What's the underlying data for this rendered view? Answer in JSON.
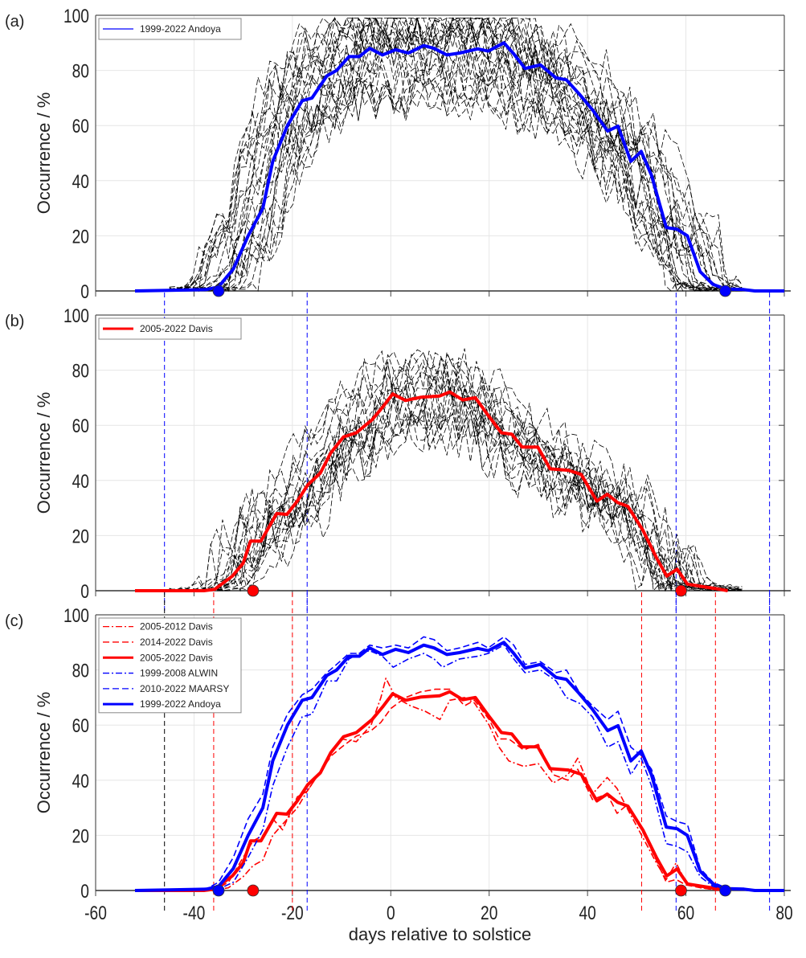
{
  "chart_data": {
    "type": "line",
    "xlabel": "days relative to solstice",
    "xlim": [
      -60,
      80
    ],
    "xticks": [
      "-60",
      "-40",
      "-20",
      "0",
      "20",
      "40",
      "60",
      "80"
    ],
    "yticks": [
      "0",
      "20",
      "40",
      "60",
      "80",
      "100"
    ],
    "grid": true,
    "panels": [
      {
        "label": "(a)",
        "ylabel": "Occurrence / %",
        "ylim": [
          0,
          100
        ],
        "individual_years_count": 24,
        "legend": {
          "placement": "top-left",
          "entries": [
            "1999-2022 Andoya"
          ]
        },
        "series": [
          {
            "name": "1999-2022 Andoya",
            "color": "#0000ff",
            "style": "solid-thick",
            "ref": "andoya"
          }
        ],
        "markers": [
          {
            "x": -35,
            "y": 0,
            "color": "#0000ff"
          },
          {
            "x": 68,
            "y": 0,
            "color": "#0000ff"
          }
        ],
        "vlines": []
      },
      {
        "label": "(b)",
        "ylabel": "Occurrence / %",
        "ylim": [
          0,
          100
        ],
        "individual_years_count": 18,
        "legend": {
          "placement": "top-left",
          "entries": [
            "2005-2022 Davis"
          ]
        },
        "series": [
          {
            "name": "2005-2022 Davis",
            "color": "#ff0000",
            "style": "solid-thick",
            "ref": "davis"
          }
        ],
        "markers": [
          {
            "x": -28,
            "y": 0,
            "color": "#ff0000"
          },
          {
            "x": 59,
            "y": 0,
            "color": "#ff0000"
          }
        ],
        "vlines": [
          {
            "x": -46,
            "color": "#0000ff"
          },
          {
            "x": -17,
            "color": "#0000ff"
          },
          {
            "x": 58,
            "color": "#0000ff"
          },
          {
            "x": 77,
            "color": "#0000ff"
          }
        ]
      },
      {
        "label": "(c)",
        "ylabel": "Occurrence / %",
        "ylim": [
          0,
          100
        ],
        "individual_years_count": 0,
        "legend": {
          "placement": "top-left",
          "entries": [
            "2005-2012 Davis",
            "2014-2022 Davis",
            "2005-2022 Davis",
            "1999-2008 ALWIN",
            "2010-2022 MAARSY",
            "1999-2022 Andoya"
          ]
        },
        "series": [
          {
            "name": "2005-2012 Davis",
            "color": "#ff0000",
            "style": "dashdot",
            "ref": "davis_0512"
          },
          {
            "name": "2014-2022 Davis",
            "color": "#ff0000",
            "style": "dashed",
            "ref": "davis_1422"
          },
          {
            "name": "2005-2022 Davis",
            "color": "#ff0000",
            "style": "solid-thick",
            "ref": "davis"
          },
          {
            "name": "1999-2008 ALWIN",
            "color": "#0000ff",
            "style": "dashdot",
            "ref": "alwin"
          },
          {
            "name": "2010-2022 MAARSY",
            "color": "#0000ff",
            "style": "dashed",
            "ref": "maarsy"
          },
          {
            "name": "1999-2022 Andoya",
            "color": "#0000ff",
            "style": "solid-thick",
            "ref": "andoya"
          }
        ],
        "markers": [
          {
            "x": -35,
            "y": 0,
            "color": "#0000ff"
          },
          {
            "x": -28,
            "y": 0,
            "color": "#ff0000"
          },
          {
            "x": 59,
            "y": 0,
            "color": "#ff0000"
          },
          {
            "x": 68,
            "y": 0,
            "color": "#0000ff"
          }
        ],
        "vlines": [
          {
            "x": -46,
            "color": "#000000"
          },
          {
            "x": -36,
            "color": "#ff0000"
          },
          {
            "x": -20,
            "color": "#ff0000"
          },
          {
            "x": -17,
            "color": "#0000ff"
          },
          {
            "x": 51,
            "color": "#ff0000"
          },
          {
            "x": 58,
            "color": "#0000ff"
          },
          {
            "x": 66,
            "color": "#ff0000"
          },
          {
            "x": 77,
            "color": "#0000ff"
          }
        ]
      }
    ],
    "curves": {
      "andoya": [
        [
          -52,
          0
        ],
        [
          -45,
          0.2
        ],
        [
          -37.5,
          0.5
        ],
        [
          -35,
          1.5
        ],
        [
          -32,
          8
        ],
        [
          -29,
          20
        ],
        [
          -26,
          30
        ],
        [
          -24,
          47
        ],
        [
          -21,
          60
        ],
        [
          -18,
          69
        ],
        [
          -16,
          70
        ],
        [
          -13,
          78
        ],
        [
          -11,
          80
        ],
        [
          -8.5,
          85
        ],
        [
          -6.4,
          85
        ],
        [
          -4.3,
          88
        ],
        [
          -1.7,
          85.6
        ],
        [
          1,
          87.5
        ],
        [
          3.6,
          86.3
        ],
        [
          6.7,
          89
        ],
        [
          8.8,
          88
        ],
        [
          11.4,
          85.6
        ],
        [
          14,
          86.3
        ],
        [
          17.7,
          87.8
        ],
        [
          19.8,
          87
        ],
        [
          23,
          90
        ],
        [
          25,
          86
        ],
        [
          27.3,
          80.7
        ],
        [
          30.4,
          82
        ],
        [
          33.6,
          77.3
        ],
        [
          35.7,
          76.6
        ],
        [
          38.3,
          71.5
        ],
        [
          41,
          65.7
        ],
        [
          44.1,
          58
        ],
        [
          46.2,
          59.8
        ],
        [
          48.8,
          47
        ],
        [
          50.9,
          50.6
        ],
        [
          53,
          42
        ],
        [
          56,
          23
        ],
        [
          58.2,
          22.4
        ],
        [
          60.3,
          20
        ],
        [
          62.9,
          7
        ],
        [
          65.5,
          2.4
        ],
        [
          68.1,
          0.7
        ],
        [
          71.8,
          0.5
        ],
        [
          74,
          0
        ],
        [
          80,
          0
        ]
      ],
      "alwin": [
        [
          -52,
          0
        ],
        [
          -37.5,
          0.3
        ],
        [
          -35,
          0.5
        ],
        [
          -32,
          3
        ],
        [
          -29,
          12
        ],
        [
          -26,
          22
        ],
        [
          -24,
          38
        ],
        [
          -21,
          52
        ],
        [
          -18,
          63
        ],
        [
          -16,
          64
        ],
        [
          -13,
          76
        ],
        [
          -11,
          76
        ],
        [
          -8.5,
          84
        ],
        [
          -6.4,
          86
        ],
        [
          -4.3,
          87
        ],
        [
          -1.7,
          85
        ],
        [
          0.5,
          81
        ],
        [
          3.6,
          84
        ],
        [
          6.7,
          86
        ],
        [
          8.8,
          84
        ],
        [
          10.5,
          81
        ],
        [
          14,
          84
        ],
        [
          17.7,
          85
        ],
        [
          19.8,
          86
        ],
        [
          23,
          89
        ],
        [
          25,
          84
        ],
        [
          27.3,
          79
        ],
        [
          30.4,
          80
        ],
        [
          33.6,
          76
        ],
        [
          35.7,
          70
        ],
        [
          38.3,
          68
        ],
        [
          41,
          63
        ],
        [
          44.1,
          52
        ],
        [
          46.2,
          54
        ],
        [
          48.8,
          42
        ],
        [
          50.9,
          48
        ],
        [
          53,
          38
        ],
        [
          56,
          17
        ],
        [
          58.2,
          16
        ],
        [
          60.3,
          14
        ],
        [
          62.9,
          5
        ],
        [
          65.5,
          1.5
        ],
        [
          68.1,
          0.5
        ],
        [
          74,
          0
        ],
        [
          80,
          0
        ]
      ],
      "maarsy": [
        [
          -52,
          0
        ],
        [
          -37.5,
          0.5
        ],
        [
          -35,
          3
        ],
        [
          -32,
          12
        ],
        [
          -29,
          26
        ],
        [
          -26,
          35
        ],
        [
          -24,
          52
        ],
        [
          -21,
          64
        ],
        [
          -18,
          71
        ],
        [
          -16,
          73
        ],
        [
          -13,
          79
        ],
        [
          -11,
          82
        ],
        [
          -8.5,
          86
        ],
        [
          -6.4,
          86
        ],
        [
          -4.3,
          89
        ],
        [
          -1.7,
          88
        ],
        [
          1,
          89
        ],
        [
          3.6,
          88
        ],
        [
          6.7,
          92
        ],
        [
          8.8,
          91
        ],
        [
          11.4,
          87
        ],
        [
          14,
          88
        ],
        [
          17.7,
          90
        ],
        [
          19.8,
          88
        ],
        [
          23,
          92
        ],
        [
          25,
          89
        ],
        [
          27.3,
          82
        ],
        [
          30.4,
          83
        ],
        [
          33.6,
          79
        ],
        [
          35.7,
          80
        ],
        [
          38.3,
          72
        ],
        [
          41,
          67
        ],
        [
          44.1,
          62
        ],
        [
          46.2,
          65
        ],
        [
          48.8,
          52
        ],
        [
          50.9,
          49
        ],
        [
          53,
          44
        ],
        [
          56,
          27
        ],
        [
          58.2,
          25
        ],
        [
          60.3,
          24
        ],
        [
          62.9,
          8
        ],
        [
          65.5,
          3
        ],
        [
          68.1,
          1
        ],
        [
          74,
          0
        ],
        [
          80,
          0
        ]
      ],
      "davis": [
        [
          -52,
          0
        ],
        [
          -38,
          0
        ],
        [
          -35.8,
          0.5
        ],
        [
          -32.2,
          5.3
        ],
        [
          -30,
          10
        ],
        [
          -28.5,
          18
        ],
        [
          -26.4,
          18
        ],
        [
          -23.2,
          28
        ],
        [
          -21.1,
          27.7
        ],
        [
          -19,
          32.5
        ],
        [
          -16.9,
          38.3
        ],
        [
          -14.3,
          42.7
        ],
        [
          -12.2,
          50
        ],
        [
          -9.6,
          55.8
        ],
        [
          -7,
          57.3
        ],
        [
          -3.8,
          62
        ],
        [
          -1.7,
          66.5
        ],
        [
          0.4,
          71.4
        ],
        [
          3,
          69
        ],
        [
          6.2,
          70.2
        ],
        [
          9.9,
          70.6
        ],
        [
          12,
          72.1
        ],
        [
          14.6,
          69.2
        ],
        [
          17.2,
          70
        ],
        [
          19.8,
          63.6
        ],
        [
          22.5,
          57.3
        ],
        [
          24.6,
          56.8
        ],
        [
          26.7,
          52.1
        ],
        [
          29.9,
          52.1
        ],
        [
          32.4,
          44.2
        ],
        [
          36.1,
          43.7
        ],
        [
          38.7,
          42.2
        ],
        [
          41.9,
          32.5
        ],
        [
          44,
          35
        ],
        [
          46.1,
          32
        ],
        [
          48.2,
          30.6
        ],
        [
          51.3,
          21.8
        ],
        [
          54,
          12
        ],
        [
          56.1,
          5.3
        ],
        [
          58.2,
          7.8
        ],
        [
          60.3,
          2.4
        ],
        [
          63,
          1.6
        ],
        [
          67,
          0.5
        ],
        [
          68.5,
          0
        ]
      ],
      "davis_0512": [
        [
          -52,
          0
        ],
        [
          -36,
          0
        ],
        [
          -33,
          1
        ],
        [
          -30,
          5
        ],
        [
          -28,
          9
        ],
        [
          -26,
          11
        ],
        [
          -24,
          20
        ],
        [
          -22,
          24
        ],
        [
          -19,
          30
        ],
        [
          -17,
          36
        ],
        [
          -14,
          44
        ],
        [
          -12,
          51
        ],
        [
          -10,
          55
        ],
        [
          -7,
          54
        ],
        [
          -4,
          60
        ],
        [
          -2,
          70
        ],
        [
          -1,
          77
        ],
        [
          1,
          70
        ],
        [
          4,
          67
        ],
        [
          7,
          65
        ],
        [
          10,
          62
        ],
        [
          12,
          69
        ],
        [
          15,
          70
        ],
        [
          17,
          68
        ],
        [
          20,
          60
        ],
        [
          22,
          52
        ],
        [
          24,
          47
        ],
        [
          27,
          45
        ],
        [
          30,
          46
        ],
        [
          33,
          39
        ],
        [
          36,
          42
        ],
        [
          38,
          48
        ],
        [
          41,
          35
        ],
        [
          44,
          41
        ],
        [
          46,
          37
        ],
        [
          48,
          30
        ],
        [
          51,
          20
        ],
        [
          54,
          10
        ],
        [
          56,
          4
        ],
        [
          58,
          10
        ],
        [
          60,
          3
        ],
        [
          63,
          1
        ],
        [
          67,
          0
        ]
      ],
      "davis_1422": [
        [
          -52,
          0
        ],
        [
          -36,
          0
        ],
        [
          -33,
          3
        ],
        [
          -30,
          12
        ],
        [
          -28,
          18
        ],
        [
          -26,
          20
        ],
        [
          -24,
          26
        ],
        [
          -22,
          22
        ],
        [
          -19,
          34
        ],
        [
          -17,
          36
        ],
        [
          -14,
          44
        ],
        [
          -12,
          49
        ],
        [
          -10,
          52
        ],
        [
          -7,
          56
        ],
        [
          -4,
          58
        ],
        [
          -2,
          61
        ],
        [
          0,
          66
        ],
        [
          3,
          70
        ],
        [
          6,
          72
        ],
        [
          9,
          73
        ],
        [
          12,
          73
        ],
        [
          15,
          67
        ],
        [
          17,
          69
        ],
        [
          20,
          62
        ],
        [
          22,
          55
        ],
        [
          24,
          55
        ],
        [
          27,
          51
        ],
        [
          30,
          53
        ],
        [
          33,
          42
        ],
        [
          36,
          40
        ],
        [
          38,
          44
        ],
        [
          41,
          33
        ],
        [
          44,
          35
        ],
        [
          46,
          28
        ],
        [
          48,
          31
        ],
        [
          51,
          22
        ],
        [
          54,
          11
        ],
        [
          56,
          3
        ],
        [
          58,
          4
        ],
        [
          60,
          2
        ],
        [
          63,
          1
        ],
        [
          67,
          0
        ]
      ]
    }
  }
}
